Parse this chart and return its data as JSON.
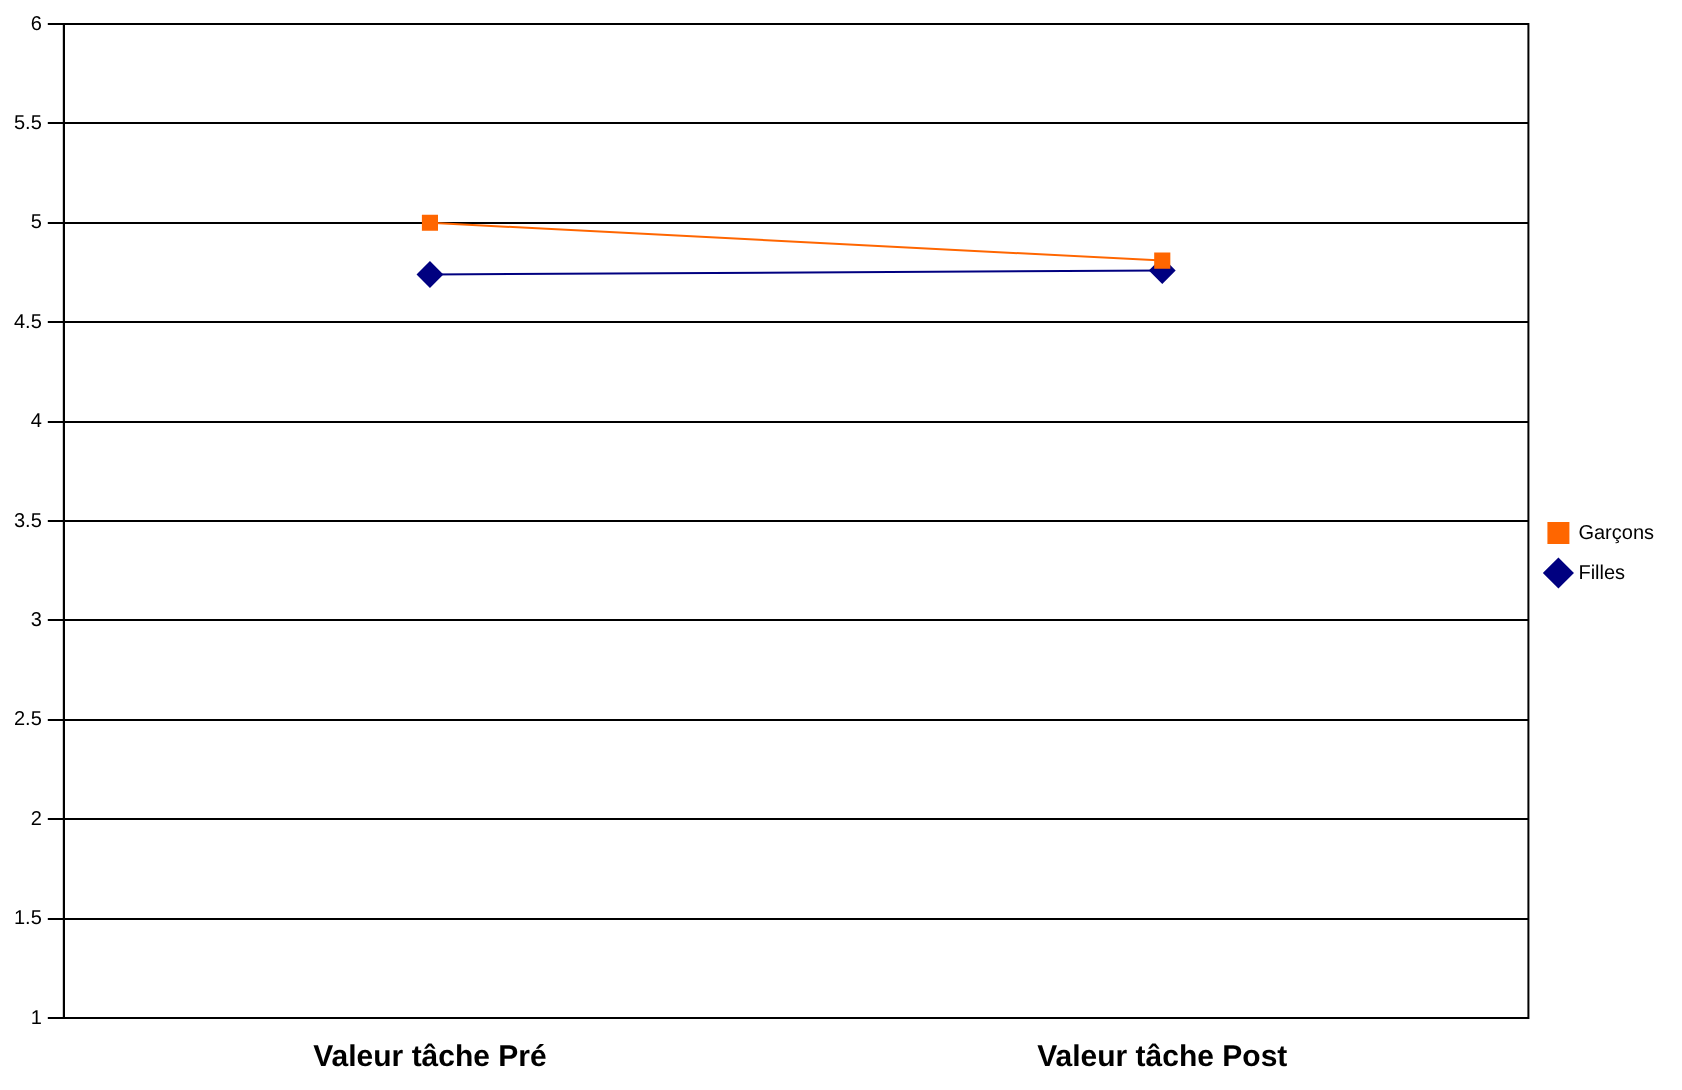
{
  "chart_data": {
    "type": "line",
    "categories": [
      "Valeur tâche Pré",
      "Valeur tâche Post"
    ],
    "series": [
      {
        "name": "Filles",
        "color": "#000080",
        "values": [
          4.74,
          4.76
        ],
        "marker": "diamond"
      },
      {
        "name": "Garçons",
        "color": "#ff6600",
        "values": [
          5.0,
          4.81
        ],
        "marker": "square"
      }
    ],
    "ylim": [
      1,
      6
    ],
    "yticks": [
      1,
      1.5,
      2,
      2.5,
      3,
      3.5,
      4,
      4.5,
      5,
      5.5,
      6
    ],
    "grid": "y",
    "legend": "right",
    "line_style": "solid"
  }
}
